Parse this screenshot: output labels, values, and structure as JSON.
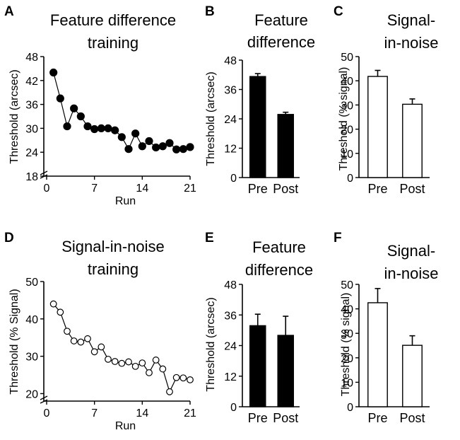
{
  "chart_data": [
    {
      "panel": "A",
      "type": "scatter",
      "title": [
        "Feature difference",
        "training"
      ],
      "xlabel": "Run",
      "ylabel": "Threshold (arcsec)",
      "xlim": [
        0,
        21
      ],
      "xticks": [
        0,
        7,
        14,
        21
      ],
      "ylim": [
        18,
        48
      ],
      "yticks": [
        18,
        24,
        30,
        36,
        42,
        48
      ],
      "marker": "filled",
      "x": [
        1,
        2,
        3,
        4,
        5,
        6,
        7,
        8,
        9,
        10,
        11,
        12,
        13,
        14,
        15,
        16,
        17,
        18,
        19,
        20,
        21
      ],
      "y": [
        44,
        37.5,
        30.5,
        35,
        33,
        30.5,
        29.8,
        30,
        30,
        29.5,
        27.8,
        24.8,
        28.7,
        25.5,
        26.8,
        25.2,
        25.5,
        26.3,
        24.7,
        24.8,
        25.3
      ]
    },
    {
      "panel": "B",
      "type": "bar",
      "title": [
        "Feature",
        "difference"
      ],
      "ylabel": "Threshold (arcsec)",
      "categories": [
        "Pre",
        "Post"
      ],
      "values": [
        41.3,
        25.8
      ],
      "errors": [
        1.2,
        0.9
      ],
      "ylim": [
        0,
        48
      ],
      "yticks": [
        0,
        12,
        24,
        36,
        48
      ],
      "fill": "#000000"
    },
    {
      "panel": "C",
      "type": "bar",
      "title": [
        "Signal-",
        "in-noise"
      ],
      "ylabel": "Threshold (% signal)",
      "categories": [
        "Pre",
        "Post"
      ],
      "values": [
        41.8,
        30.3
      ],
      "errors": [
        2.5,
        2.2
      ],
      "ylim": [
        0,
        50
      ],
      "yticks": [
        0,
        10,
        20,
        30,
        40,
        50
      ],
      "fill": "#ffffff"
    },
    {
      "panel": "D",
      "type": "scatter",
      "title": [
        "Signal-in-noise",
        "training"
      ],
      "xlabel": "Run",
      "ylabel": "Threshold (% Signal)",
      "xlim": [
        0,
        21
      ],
      "xticks": [
        0,
        7,
        14,
        21
      ],
      "ylim": [
        18,
        50
      ],
      "yticks": [
        20,
        30,
        40,
        50
      ],
      "marker": "open",
      "x": [
        1,
        2,
        3,
        4,
        5,
        6,
        7,
        8,
        9,
        10,
        11,
        12,
        13,
        14,
        15,
        16,
        17,
        18,
        19,
        20,
        21
      ],
      "y": [
        44,
        41.8,
        36.7,
        34.1,
        33.8,
        34.7,
        31.2,
        32.5,
        29.2,
        28.6,
        28.1,
        28.5,
        27.3,
        28.2,
        25.6,
        29,
        26.6,
        20.5,
        24.3,
        24.2,
        23.7
      ]
    },
    {
      "panel": "E",
      "type": "bar",
      "title": [
        "Feature",
        "difference"
      ],
      "ylabel": "Threshold (arcsec)",
      "categories": [
        "Pre",
        "Post"
      ],
      "values": [
        31.8,
        28
      ],
      "errors": [
        4.5,
        7.5
      ],
      "ylim": [
        0,
        48
      ],
      "yticks": [
        0,
        12,
        24,
        36,
        48
      ],
      "fill": "#000000"
    },
    {
      "panel": "F",
      "type": "bar",
      "title": [
        "Signal-",
        "in-noise"
      ],
      "ylabel": "Threshold (% signal)",
      "categories": [
        "Pre",
        "Post"
      ],
      "values": [
        42.5,
        25.1
      ],
      "errors": [
        5.8,
        3.9
      ],
      "ylim": [
        0,
        50
      ],
      "yticks": [
        0,
        10,
        20,
        30,
        40,
        50
      ],
      "fill": "#ffffff"
    }
  ]
}
